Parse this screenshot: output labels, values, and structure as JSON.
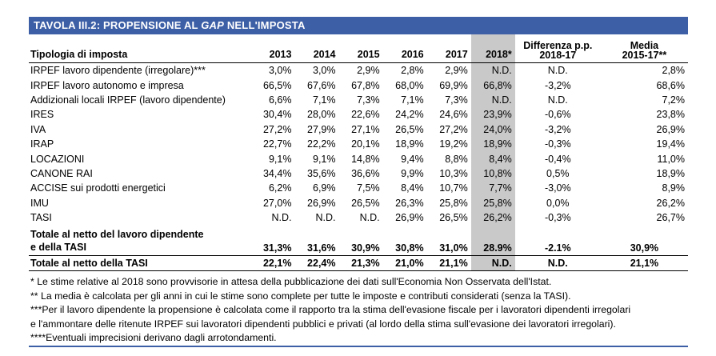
{
  "title_prefix": "TAVOLA III.2: PROPENSIONE AL ",
  "title_italic": "GAP",
  "title_suffix": " NELL'IMPOSTA",
  "headers": {
    "tipologia": "Tipologia di imposta",
    "years": [
      "2013",
      "2014",
      "2015",
      "2016",
      "2017",
      "2018*"
    ],
    "diff_line1": "Differenza p.p.",
    "diff_line2": "2018-17",
    "media_line1": "Media",
    "media_line2": "2015-17**"
  },
  "rows": [
    {
      "label": "IRPEF lavoro dipendente (irregolare)***",
      "vals": [
        "3,0%",
        "3,0%",
        "2,9%",
        "2,8%",
        "2,9%",
        "N.D."
      ],
      "diff": "N.D.",
      "media": "2,8%"
    },
    {
      "label": "IRPEF lavoro autonomo e impresa",
      "vals": [
        "66,5%",
        "67,6%",
        "67,8%",
        "68,0%",
        "69,9%",
        "66,8%"
      ],
      "diff": "-3,2%",
      "media": "68,6%"
    },
    {
      "label": "Addizionali locali IRPEF (lavoro dipendente)",
      "vals": [
        "6,6%",
        "7,1%",
        "7,3%",
        "7,1%",
        "7,3%",
        "N.D."
      ],
      "diff": "N.D.",
      "media": "7,2%"
    },
    {
      "label": "IRES",
      "vals": [
        "30,4%",
        "28,0%",
        "22,6%",
        "24,2%",
        "24,6%",
        "23,9%"
      ],
      "diff": "-0,6%",
      "media": "23,8%"
    },
    {
      "label": "IVA",
      "vals": [
        "27,2%",
        "27,9%",
        "27,1%",
        "26,5%",
        "27,2%",
        "24,0%"
      ],
      "diff": "-3,2%",
      "media": "26,9%"
    },
    {
      "label": "IRAP",
      "vals": [
        "22,7%",
        "22,2%",
        "20,1%",
        "18,9%",
        "19,2%",
        "18,9%"
      ],
      "diff": "-0,3%",
      "media": "19,4%"
    },
    {
      "label": "LOCAZIONI",
      "vals": [
        "9,1%",
        "9,1%",
        "14,8%",
        "9,4%",
        "8,8%",
        "8,4%"
      ],
      "diff": "-0,4%",
      "media": "11,0%"
    },
    {
      "label": "CANONE RAI",
      "vals": [
        "34,4%",
        "35,6%",
        "36,6%",
        "9,9%",
        "10,3%",
        "10,8%"
      ],
      "diff": "0,5%",
      "media": "18,9%"
    },
    {
      "label": "ACCISE sui prodotti energetici",
      "vals": [
        "6,2%",
        "6,9%",
        "7,5%",
        "8,4%",
        "10,7%",
        "7,7%"
      ],
      "diff": "-3,0%",
      "media": "8,9%"
    },
    {
      "label": "IMU",
      "vals": [
        "27,0%",
        "26,9%",
        "26,5%",
        "26,3%",
        "25,8%",
        "25,8%"
      ],
      "diff": "0,0%",
      "media": "26,2%"
    },
    {
      "label": "TASI",
      "vals": [
        "N.D.",
        "N.D.",
        "N.D.",
        "26,9%",
        "26,5%",
        "26,2%"
      ],
      "diff": "-0,3%",
      "media": "26,7%"
    }
  ],
  "total1": {
    "label_line1": "Totale al netto del lavoro dipendente",
    "label_line2": "e della TASI",
    "vals": [
      "31,3%",
      "31,6%",
      "30,9%",
      "30,8%",
      "31,0%",
      "28.9%"
    ],
    "diff": "-2.1%",
    "media": "30,9%"
  },
  "total2": {
    "label": "Totale al netto della TASI",
    "vals": [
      "22,1%",
      "22,4%",
      "21,3%",
      "21,0%",
      "21,1%",
      "N.D."
    ],
    "diff": "N.D.",
    "media": "21,1%"
  },
  "notes": [
    "* Le stime relative al 2018 sono provvisorie in attesa della pubblicazione dei dati sull'Economia Non Osservata dell'Istat.",
    "** La media è calcolata per gli anni in cui le stime sono complete per tutte le imposte e contributi considerati (senza la TASI).",
    "***Per il lavoro dipendente la propensione è calcolata come il rapporto tra la stima dell'evasione fiscale per i lavoratori dipendenti irregolari",
    "e l'ammontare delle ritenute IRPEF sui lavoratori dipendenti pubblici e privati (al lordo della stima sull'evasione dei lavoratori irregolari).",
    "****Eventuali imprecisioni derivano dagli arrotondamenti."
  ]
}
